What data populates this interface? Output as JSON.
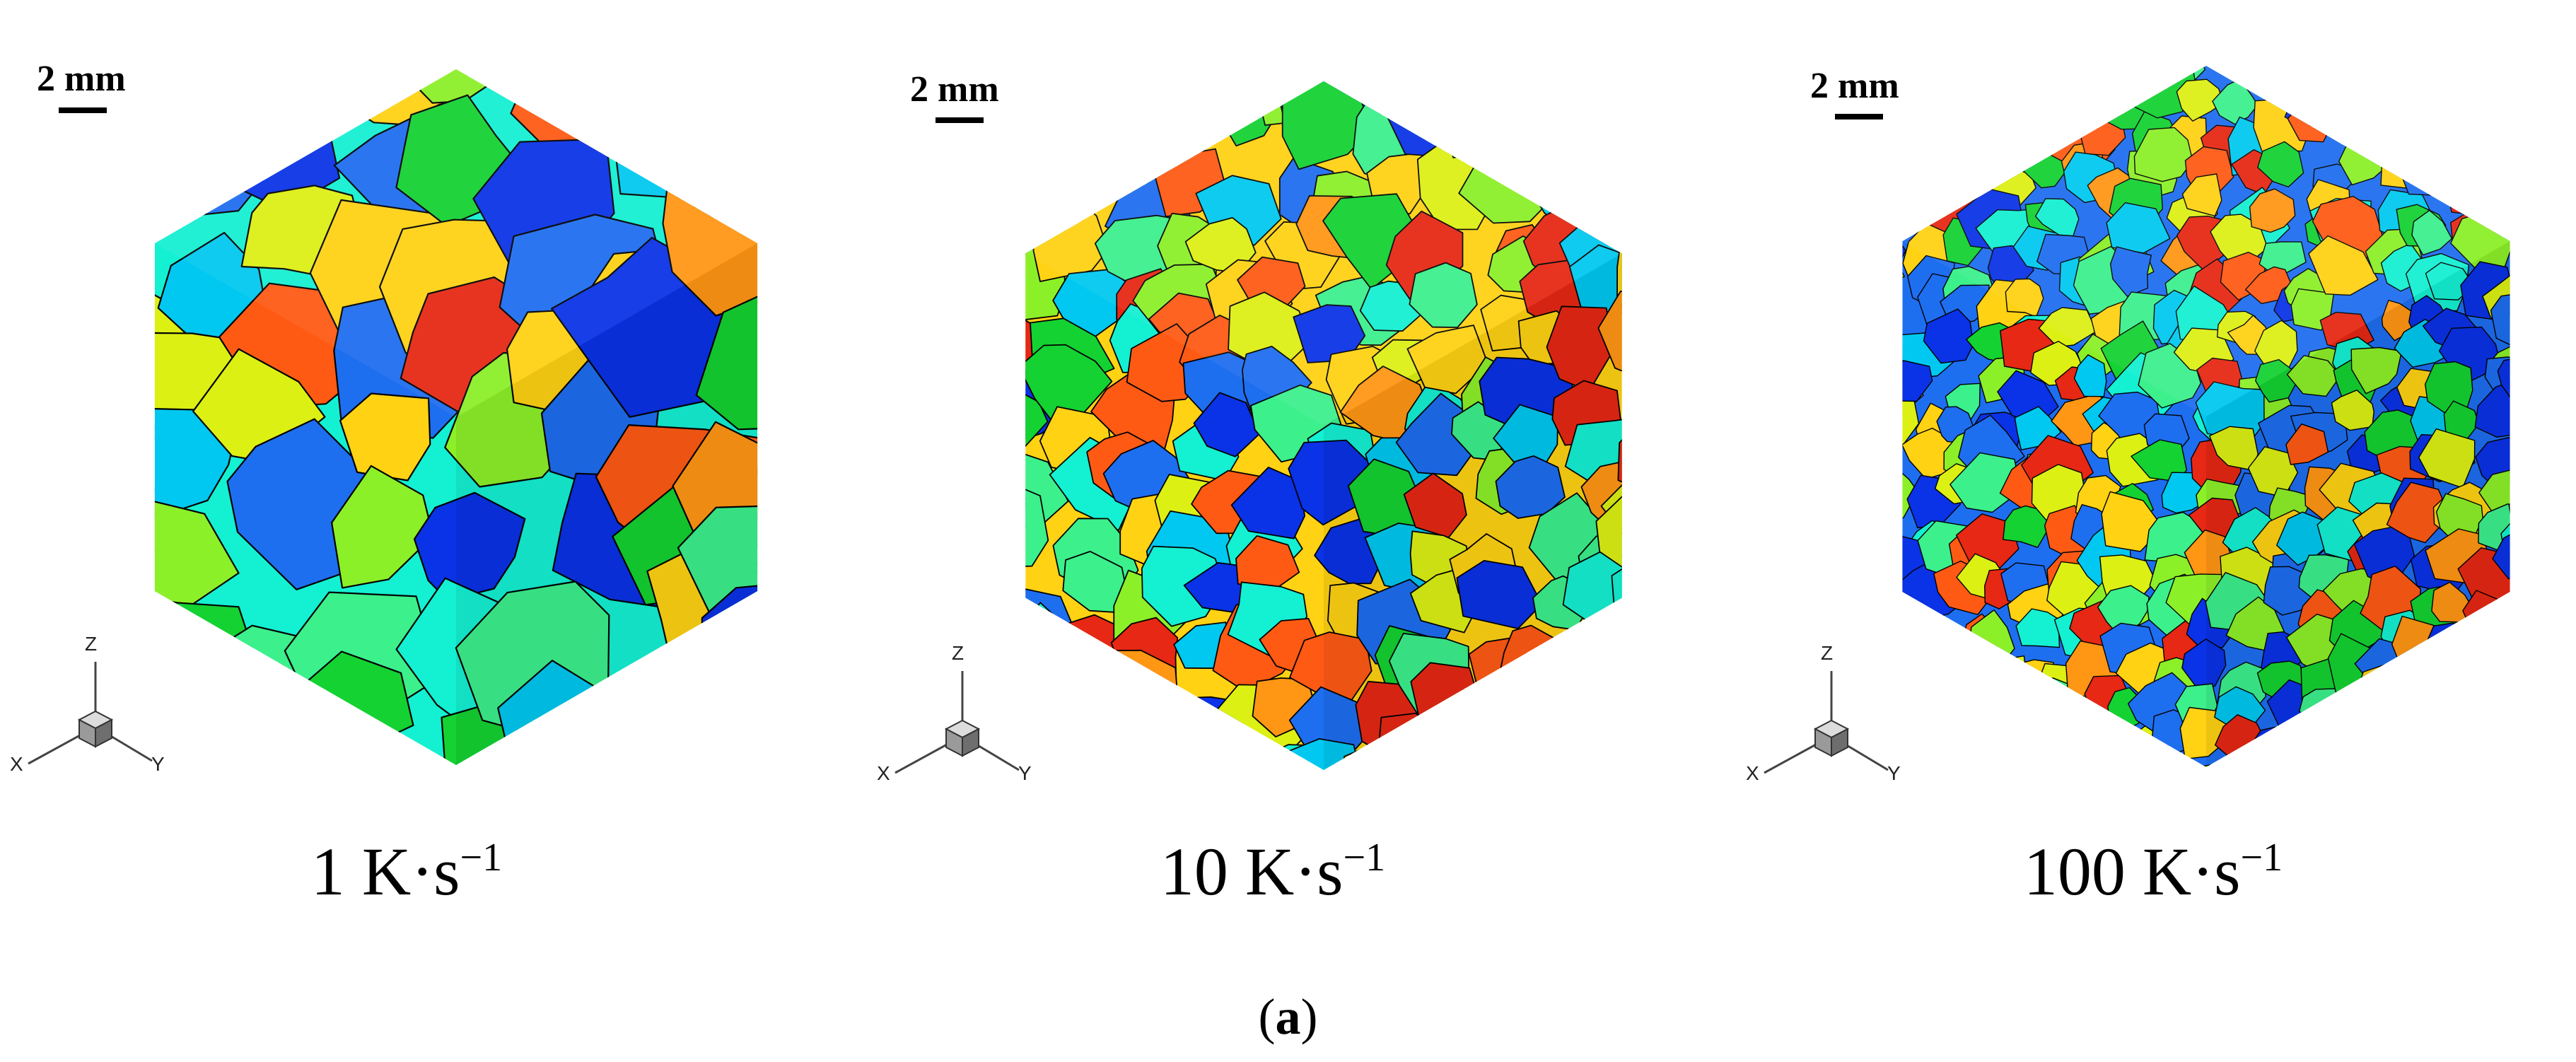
{
  "panels": [
    {
      "scale_label": "2 mm",
      "rate_value": "1 K·s",
      "rate_exponent": "−1",
      "axes": {
        "x": "X",
        "y": "Y",
        "z": "Z"
      },
      "grain_density": "coarse"
    },
    {
      "scale_label": "2 mm",
      "rate_value": "10 K·s",
      "rate_exponent": "−1",
      "axes": {
        "x": "X",
        "y": "Y",
        "z": "Z"
      },
      "grain_density": "medium"
    },
    {
      "scale_label": "2 mm",
      "rate_value": "100 K·s",
      "rate_exponent": "−1",
      "axes": {
        "x": "X",
        "y": "Y",
        "z": "Z"
      },
      "grain_density": "fine"
    }
  ],
  "figure_label": {
    "open": "(",
    "letter": "a",
    "close": ")"
  },
  "grain_palette": [
    "#0a32e6",
    "#1e6ef0",
    "#00c8f0",
    "#14f0d2",
    "#3cf08c",
    "#14d232",
    "#8cf028",
    "#dcf014",
    "#ffd214",
    "#ff9614",
    "#ff5a14",
    "#e62814"
  ]
}
